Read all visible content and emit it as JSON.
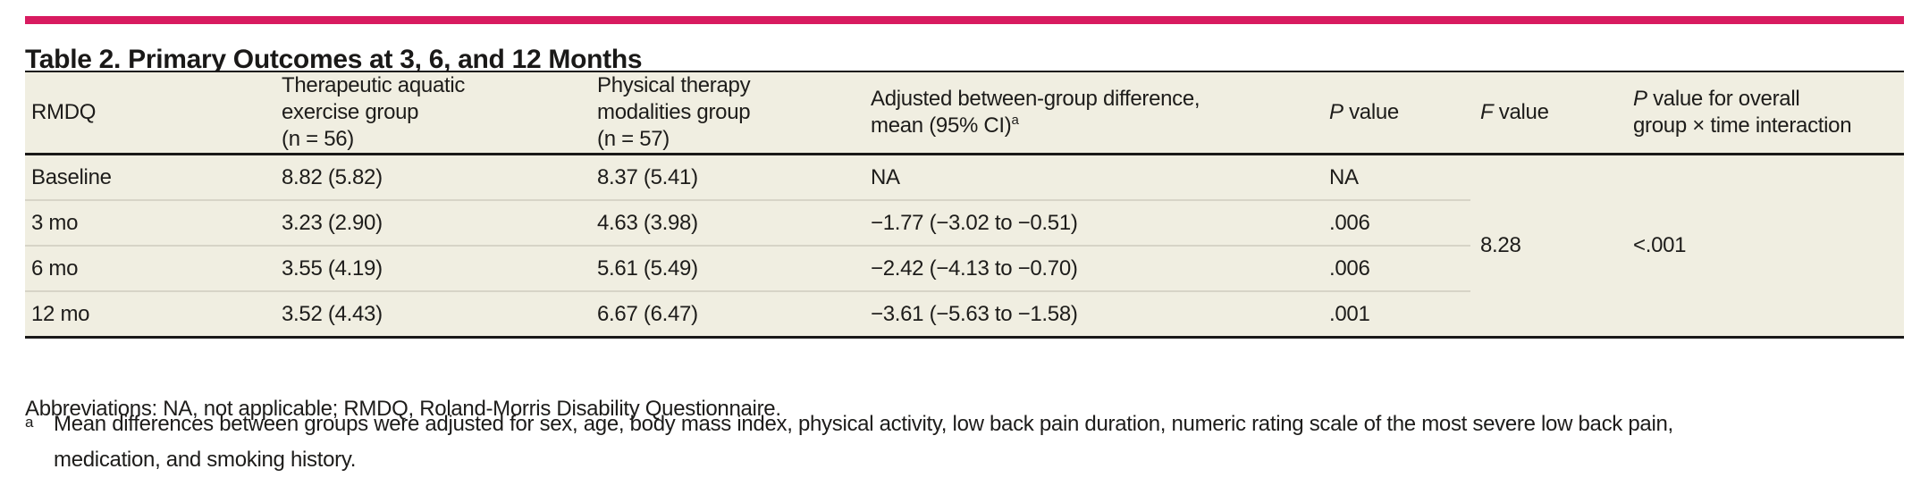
{
  "colors": {
    "accent_bar": "#d81b60",
    "table_background": "#f0eee1",
    "rule": "#1a1918",
    "row_divider": "#d7d4c7",
    "text": "#1d1c1a"
  },
  "title": "Table 2. Primary Outcomes at 3, 6, and 12 Months",
  "table": {
    "headers": {
      "rmdq": "RMDQ",
      "aquatic_lines": [
        "Therapeutic aquatic",
        "exercise group",
        "(n = 56)"
      ],
      "pt_lines": [
        "Physical therapy",
        "modalities group",
        "(n = 57)"
      ],
      "diff_line1": "Adjusted between-group difference,",
      "diff_line2": "mean (95% CI)",
      "diff_sup": "a",
      "p_italic": "P",
      "p_rest": " value",
      "f_italic": "F",
      "f_rest": " value",
      "interaction_italic": "P",
      "interaction_rest": " value for overall",
      "interaction_line2": "group × time interaction"
    },
    "rows": [
      {
        "label": "Baseline",
        "aquatic": "8.82 (5.82)",
        "pt": "8.37 (5.41)",
        "diff": "NA",
        "p": "NA"
      },
      {
        "label": "3 mo",
        "aquatic": "3.23 (2.90)",
        "pt": "4.63 (3.98)",
        "diff": "−1.77 (−3.02 to −0.51)",
        "p": ".006"
      },
      {
        "label": "6 mo",
        "aquatic": "3.55 (4.19)",
        "pt": "5.61 (5.49)",
        "diff": "−2.42 (−4.13 to −0.70)",
        "p": ".006"
      },
      {
        "label": "12 mo",
        "aquatic": "3.52 (4.43)",
        "pt": "6.67 (6.47)",
        "diff": "−3.61 (−5.63 to −1.58)",
        "p": ".001"
      }
    ],
    "f_value": "8.28",
    "interaction_p": "<.001"
  },
  "footnotes": {
    "abbreviations": "Abbreviations: NA, not applicable; RMDQ, Roland-Morris Disability Questionnaire.",
    "a_marker": "a",
    "a_lines": [
      "Mean differences between groups were adjusted for sex, age, body mass index, physical activity, low back pain duration, numeric rating scale of the most severe low back pain,",
      "medication, and smoking history."
    ]
  },
  "chart_data": {
    "type": "table",
    "title": "Table 2. Primary Outcomes at 3, 6, and 12 Months",
    "columns": [
      "RMDQ",
      "Therapeutic aquatic exercise group (n = 56)",
      "Physical therapy modalities group (n = 57)",
      "Adjusted between-group difference, mean (95% CI)",
      "P value",
      "F value",
      "P value for overall group × time interaction"
    ],
    "rows": [
      [
        "Baseline",
        "8.82 (5.82)",
        "8.37 (5.41)",
        "NA",
        "NA",
        "8.28",
        "<.001"
      ],
      [
        "3 mo",
        "3.23 (2.90)",
        "4.63 (3.98)",
        "−1.77 (−3.02 to −0.51)",
        ".006",
        "8.28",
        "<.001"
      ],
      [
        "6 mo",
        "3.55 (4.19)",
        "5.61 (5.49)",
        "−2.42 (−4.13 to −0.70)",
        ".006",
        "8.28",
        "<.001"
      ],
      [
        "12 mo",
        "3.52 (4.43)",
        "6.67 (6.47)",
        "−3.61 (−5.63 to −1.58)",
        ".001",
        "8.28",
        "<.001"
      ]
    ]
  }
}
